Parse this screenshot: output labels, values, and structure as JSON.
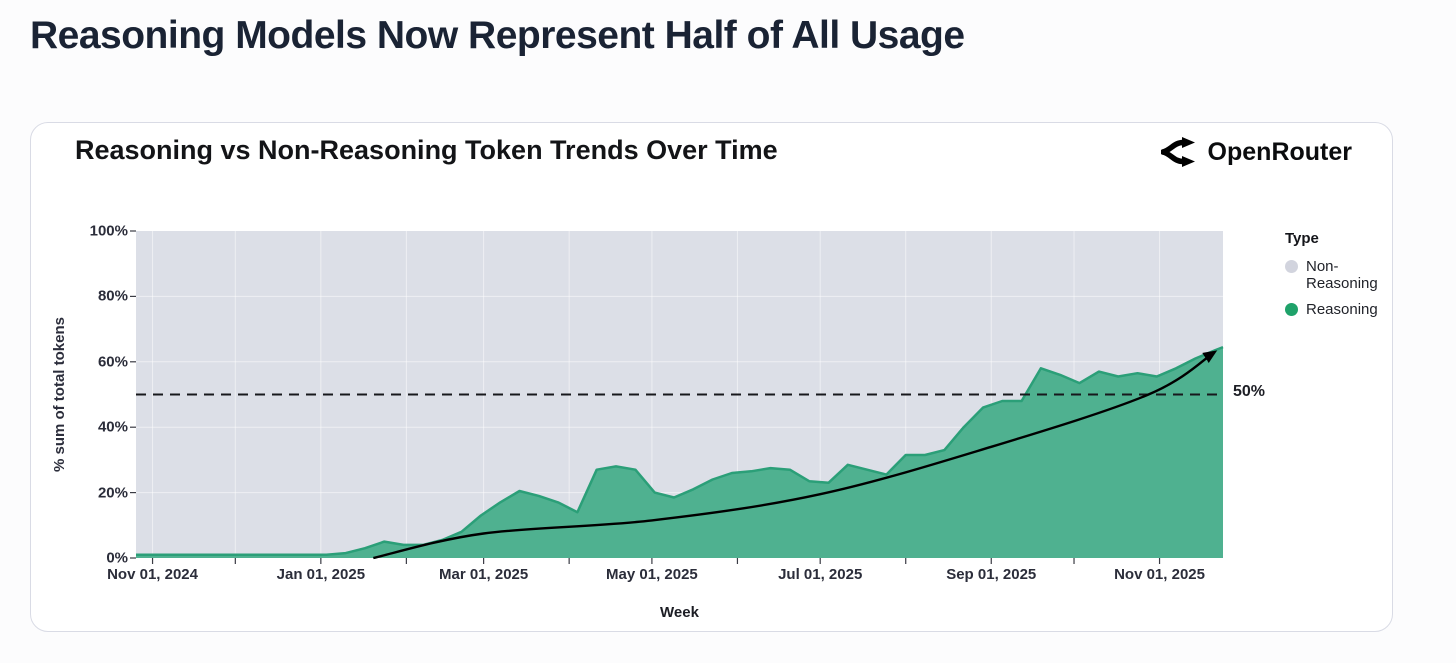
{
  "page": {
    "title": "Reasoning Models Now Represent Half of All Usage"
  },
  "card": {
    "chart_title": "Reasoning vs Non-Reasoning Token Trends Over Time",
    "brand": {
      "name": "OpenRouter",
      "icon": "openrouter-shuffle-icon"
    }
  },
  "legend": {
    "title": "Type",
    "items": [
      {
        "label": "Non-Reasoning",
        "color": "#d2d4de"
      },
      {
        "label": "Reasoning",
        "color": "#1fa26a"
      }
    ]
  },
  "chart_data": {
    "type": "area",
    "stacking": "percent",
    "title": "Reasoning vs Non-Reasoning Token Trends Over Time",
    "xlabel": "Week",
    "ylabel": "% sum of total tokens",
    "ylim": [
      0,
      100
    ],
    "grid": "on",
    "legend_position": "right",
    "x_domain": [
      "2024-10-26",
      "2025-11-24"
    ],
    "y_ticks": [
      {
        "label": "0%",
        "value": 0
      },
      {
        "label": "20%",
        "value": 20
      },
      {
        "label": "40%",
        "value": 40
      },
      {
        "label": "60%",
        "value": 60
      },
      {
        "label": "80%",
        "value": 80
      },
      {
        "label": "100%",
        "value": 100
      }
    ],
    "x_ticks": [
      {
        "label": "Nov 01, 2024",
        "date": "2024-11-01"
      },
      {
        "label": "Jan 01, 2025",
        "date": "2025-01-01"
      },
      {
        "label": "Mar 01, 2025",
        "date": "2025-03-01"
      },
      {
        "label": "May 01, 2025",
        "date": "2025-05-01"
      },
      {
        "label": "Jul 01, 2025",
        "date": "2025-07-01"
      },
      {
        "label": "Sep 01, 2025",
        "date": "2025-09-01"
      },
      {
        "label": "Nov 01, 2025",
        "date": "2025-11-01"
      }
    ],
    "series": [
      {
        "name": "Reasoning",
        "color": "#4fb190",
        "stroke": "#2b9f78",
        "points": [
          [
            "2024-10-26",
            1
          ],
          [
            "2024-11-01",
            1
          ],
          [
            "2024-11-08",
            1
          ],
          [
            "2024-11-15",
            1
          ],
          [
            "2024-11-22",
            1
          ],
          [
            "2024-11-29",
            1
          ],
          [
            "2024-12-06",
            1
          ],
          [
            "2024-12-13",
            1
          ],
          [
            "2024-12-20",
            1
          ],
          [
            "2024-12-27",
            1
          ],
          [
            "2025-01-03",
            1
          ],
          [
            "2025-01-10",
            1.5
          ],
          [
            "2025-01-17",
            3
          ],
          [
            "2025-01-24",
            5
          ],
          [
            "2025-01-31",
            4
          ],
          [
            "2025-02-07",
            4
          ],
          [
            "2025-02-14",
            5.5
          ],
          [
            "2025-02-21",
            8
          ],
          [
            "2025-02-28",
            13
          ],
          [
            "2025-03-07",
            17
          ],
          [
            "2025-03-14",
            20.5
          ],
          [
            "2025-03-21",
            19
          ],
          [
            "2025-03-28",
            17
          ],
          [
            "2025-04-04",
            14
          ],
          [
            "2025-04-11",
            27
          ],
          [
            "2025-04-18",
            28
          ],
          [
            "2025-04-25",
            27
          ],
          [
            "2025-05-02",
            20
          ],
          [
            "2025-05-09",
            18.5
          ],
          [
            "2025-05-16",
            21
          ],
          [
            "2025-05-23",
            24
          ],
          [
            "2025-05-30",
            26
          ],
          [
            "2025-06-06",
            26.5
          ],
          [
            "2025-06-13",
            27.5
          ],
          [
            "2025-06-20",
            27
          ],
          [
            "2025-06-27",
            23.5
          ],
          [
            "2025-07-04",
            23
          ],
          [
            "2025-07-11",
            28.5
          ],
          [
            "2025-07-18",
            27
          ],
          [
            "2025-07-25",
            25.5
          ],
          [
            "2025-08-01",
            31.5
          ],
          [
            "2025-08-08",
            31.5
          ],
          [
            "2025-08-15",
            33
          ],
          [
            "2025-08-22",
            40
          ],
          [
            "2025-08-29",
            46
          ],
          [
            "2025-09-05",
            48
          ],
          [
            "2025-09-12",
            48
          ],
          [
            "2025-09-19",
            58
          ],
          [
            "2025-09-26",
            56
          ],
          [
            "2025-10-03",
            53.5
          ],
          [
            "2025-10-10",
            57
          ],
          [
            "2025-10-17",
            55.5
          ],
          [
            "2025-10-24",
            56.5
          ],
          [
            "2025-10-31",
            55.5
          ],
          [
            "2025-11-07",
            58
          ],
          [
            "2025-11-14",
            61
          ],
          [
            "2025-11-21",
            63.5
          ],
          [
            "2025-11-24",
            64.5
          ]
        ]
      },
      {
        "name": "Non-Reasoning",
        "color": "#dcdfe7",
        "values": "stacked remainder to 100% of Reasoning series"
      }
    ],
    "reference_line": {
      "value": 50,
      "label": "50%",
      "style": "dashed"
    },
    "trend_arrow": {
      "points": [
        [
          "2025-01-20",
          0
        ],
        [
          "2025-03-01",
          7.5
        ],
        [
          "2025-05-01",
          11.5
        ],
        [
          "2025-07-01",
          19.5
        ],
        [
          "2025-09-01",
          34
        ],
        [
          "2025-10-28",
          50
        ],
        [
          "2025-11-21",
          63
        ]
      ]
    }
  }
}
